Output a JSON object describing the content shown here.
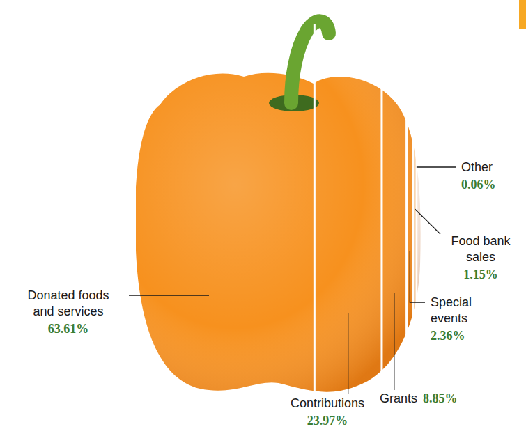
{
  "chart_data": {
    "type": "proportion",
    "categories": [
      "Donated foods and services",
      "Contributions",
      "Grants",
      "Special events",
      "Food bank sales",
      "Other"
    ],
    "values": [
      63.61,
      23.97,
      8.85,
      2.36,
      1.15,
      0.06
    ],
    "value_labels": [
      "63.61%",
      "23.97%",
      "8.85%",
      "2.36%",
      "1.15%",
      "0.06%"
    ],
    "data_labels": true,
    "color": "#f7911e"
  }
}
